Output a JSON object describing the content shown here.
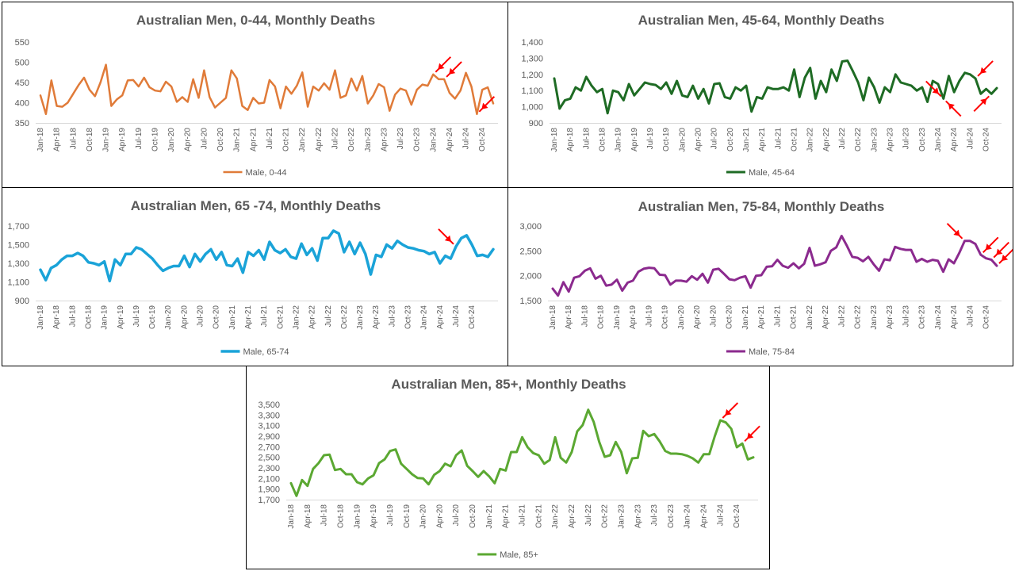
{
  "chart_data": [
    {
      "type": "line",
      "title": "Australian Men, 0-44, Monthly Deaths",
      "xlabel": "",
      "ylabel": "",
      "ylim": [
        350,
        550
      ],
      "yticks": [
        "350",
        "400",
        "450",
        "500",
        "550"
      ],
      "ytick_values": [
        350,
        400,
        450,
        500,
        550
      ],
      "grid": false,
      "legend": "bottom",
      "start": "2018-01",
      "xtick_labels": [
        "Jan-18",
        "Apr-18",
        "Jul-18",
        "Oct-18",
        "Jan-19",
        "Apr-19",
        "Jul-19",
        "Oct-19",
        "Jan-20",
        "Apr-20",
        "Jul-20",
        "Oct-20",
        "Jan-21",
        "Apr-21",
        "Jul-21",
        "Oct-21",
        "Jan-22",
        "Apr-22",
        "Jul-22",
        "Oct-22",
        "Jan-23",
        "Apr-23",
        "Jul-23",
        "Oct-23",
        "Jan-24",
        "Apr-24",
        "Jul-24",
        "Oct-24"
      ],
      "series": [
        {
          "name": "Male, 0-44",
          "color": "#E07B39",
          "values": [
            418,
            372,
            455,
            392,
            390,
            400,
            422,
            444,
            462,
            432,
            416,
            450,
            494,
            392,
            408,
            418,
            455,
            456,
            440,
            462,
            438,
            430,
            428,
            452,
            440,
            402,
            414,
            402,
            458,
            412,
            480,
            414,
            388,
            400,
            412,
            480,
            460,
            392,
            382,
            412,
            398,
            400,
            456,
            440,
            386,
            440,
            422,
            442,
            475,
            390,
            440,
            430,
            448,
            432,
            480,
            412,
            418,
            460,
            430,
            466,
            398,
            418,
            446,
            438,
            380,
            420,
            435,
            430,
            395,
            432,
            445,
            442,
            470,
            458,
            458,
            424,
            410,
            430,
            474,
            440,
            372,
            432,
            438,
            398
          ]
        }
      ],
      "arrows": [
        {
          "month_index": 72,
          "direction": "down-left",
          "color": "#FF0000"
        },
        {
          "month_index": 74,
          "direction": "down-left",
          "color": "#FF0000"
        },
        {
          "month_index": 80,
          "direction": "down-left",
          "color": "#FF0000"
        }
      ]
    },
    {
      "type": "line",
      "title": "Australian Men, 45-64, Monthly Deaths",
      "xlabel": "",
      "ylabel": "",
      "ylim": [
        900,
        1400
      ],
      "yticks": [
        "900",
        "1,000",
        "1,100",
        "1,200",
        "1,300",
        "1,400"
      ],
      "ytick_values": [
        900,
        1000,
        1100,
        1200,
        1300,
        1400
      ],
      "grid": false,
      "legend": "bottom",
      "start": "2018-01",
      "xtick_labels": [
        "Jan-18",
        "Apr-18",
        "Jul-18",
        "Oct-18",
        "Jan-19",
        "Apr-19",
        "Jul-19",
        "Oct-19",
        "Jan-20",
        "Apr-20",
        "Jul-20",
        "Oct-20",
        "Jan-21",
        "Apr-21",
        "Jul-21",
        "Oct-21",
        "Jan-22",
        "Apr-22",
        "Jul-22",
        "Oct-22",
        "Jan-23",
        "Apr-23",
        "Jul-23",
        "Oct-23",
        "Jan-24",
        "Apr-24",
        "Jul-24",
        "Oct-24"
      ],
      "series": [
        {
          "name": "Male, 45-64",
          "color": "#1E6B24",
          "values": [
            1175,
            988,
            1040,
            1050,
            1120,
            1100,
            1185,
            1130,
            1090,
            1110,
            960,
            1100,
            1090,
            1040,
            1140,
            1070,
            1110,
            1150,
            1140,
            1135,
            1110,
            1150,
            1080,
            1160,
            1070,
            1060,
            1130,
            1050,
            1110,
            1020,
            1140,
            1145,
            1060,
            1050,
            1120,
            1100,
            1130,
            970,
            1060,
            1050,
            1120,
            1110,
            1110,
            1120,
            1100,
            1230,
            1060,
            1180,
            1240,
            1050,
            1160,
            1090,
            1230,
            1160,
            1280,
            1285,
            1220,
            1150,
            1040,
            1180,
            1120,
            1025,
            1120,
            1090,
            1200,
            1150,
            1140,
            1130,
            1100,
            1120,
            1030,
            1160,
            1140,
            1050,
            1190,
            1090,
            1160,
            1210,
            1200,
            1175,
            1080,
            1110,
            1080,
            1115
          ]
        }
      ],
      "arrows": [
        {
          "month_index": 73,
          "direction": "down-right",
          "color": "#FF0000"
        },
        {
          "month_index": 73,
          "direction": "up-left",
          "color": "#FF0000"
        },
        {
          "month_index": 79,
          "direction": "down-left",
          "color": "#FF0000"
        },
        {
          "month_index": 82,
          "direction": "up-right",
          "color": "#FF0000"
        }
      ]
    },
    {
      "type": "line",
      "title": "Australian Men, 65 -74, Monthly Deaths",
      "xlabel": "",
      "ylabel": "",
      "ylim": [
        900,
        1700
      ],
      "yticks": [
        "900",
        "1,100",
        "1,300",
        "1,500",
        "1,700"
      ],
      "ytick_values": [
        900,
        1100,
        1300,
        1500,
        1700
      ],
      "grid": false,
      "legend": "bottom",
      "start": "2018-01",
      "xtick_labels": [
        "Jan-18",
        "Apr-18",
        "Jul-18",
        "Oct-18",
        "Jan-19",
        "Apr-19",
        "Jul-19",
        "Oct-19",
        "Jan-20",
        "Apr-20",
        "Jul-20",
        "Oct-20",
        "Jan-21",
        "Apr-21",
        "Jul-21",
        "Oct-21",
        "Jan-22",
        "Apr-22",
        "Jul-22",
        "Oct-22",
        "Jan-23",
        "Apr-23",
        "Jul-23",
        "Oct-23",
        "Jan-24",
        "Apr-24",
        "Jul-24",
        "Oct-24"
      ],
      "series": [
        {
          "name": "Male, 65-74",
          "color": "#1AA3D8",
          "values": [
            1230,
            1120,
            1250,
            1280,
            1340,
            1380,
            1380,
            1410,
            1380,
            1310,
            1300,
            1280,
            1320,
            1110,
            1340,
            1280,
            1400,
            1400,
            1470,
            1450,
            1400,
            1350,
            1280,
            1220,
            1250,
            1270,
            1270,
            1380,
            1260,
            1400,
            1320,
            1400,
            1450,
            1340,
            1420,
            1280,
            1270,
            1350,
            1200,
            1420,
            1380,
            1440,
            1340,
            1530,
            1440,
            1410,
            1450,
            1370,
            1350,
            1510,
            1390,
            1460,
            1330,
            1570,
            1570,
            1650,
            1620,
            1420,
            1530,
            1400,
            1520,
            1400,
            1180,
            1390,
            1370,
            1500,
            1460,
            1540,
            1500,
            1470,
            1460,
            1440,
            1430,
            1400,
            1420,
            1300,
            1380,
            1350,
            1480,
            1570,
            1600,
            1500,
            1380,
            1390,
            1370,
            1450
          ]
        }
      ],
      "arrows": [
        {
          "month_index": 78,
          "direction": "down-right",
          "color": "#FF0000"
        }
      ]
    },
    {
      "type": "line",
      "title": "Australian Men, 75-84, Monthly Deaths",
      "xlabel": "",
      "ylabel": "",
      "ylim": [
        1500,
        3000
      ],
      "yticks": [
        "1,500",
        "2,000",
        "2,500",
        "3,000"
      ],
      "ytick_values": [
        1500,
        2000,
        2500,
        3000
      ],
      "grid": false,
      "legend": "bottom",
      "start": "2018-01",
      "xtick_labels": [
        "Jan-18",
        "Apr-18",
        "Jul-18",
        "Oct-18",
        "Jan-19",
        "Apr-19",
        "Jul-19",
        "Oct-19",
        "Jan-20",
        "Apr-20",
        "Jul-20",
        "Oct-20",
        "Jan-21",
        "Apr-21",
        "Jul-21",
        "Oct-21",
        "Jan-22",
        "Apr-22",
        "Jul-22",
        "Oct-22",
        "Jan-23",
        "Apr-23",
        "Jul-23",
        "Oct-23",
        "Jan-24",
        "Apr-24",
        "Jul-24",
        "Oct-24"
      ],
      "series": [
        {
          "name": "Male, 75-84",
          "color": "#8B2A8E",
          "values": [
            1740,
            1600,
            1870,
            1680,
            1960,
            1990,
            2100,
            2150,
            1940,
            2000,
            1800,
            1820,
            1920,
            1700,
            1860,
            1900,
            2080,
            2140,
            2160,
            2150,
            2020,
            2010,
            1820,
            1900,
            1900,
            1880,
            1990,
            1920,
            2040,
            1860,
            2120,
            2140,
            2040,
            1930,
            1910,
            1960,
            1990,
            1760,
            2000,
            2010,
            2180,
            2190,
            2320,
            2200,
            2160,
            2250,
            2150,
            2240,
            2560,
            2200,
            2230,
            2270,
            2500,
            2570,
            2800,
            2600,
            2380,
            2360,
            2290,
            2380,
            2230,
            2100,
            2330,
            2310,
            2580,
            2540,
            2520,
            2520,
            2280,
            2340,
            2280,
            2320,
            2300,
            2080,
            2330,
            2250,
            2460,
            2700,
            2700,
            2640,
            2420,
            2350,
            2320,
            2200
          ]
        }
      ],
      "arrows": [
        {
          "month_index": 77,
          "direction": "down-right",
          "color": "#FF0000"
        },
        {
          "month_index": 80,
          "direction": "down-left",
          "color": "#FF0000"
        },
        {
          "month_index": 82,
          "direction": "down-left",
          "color": "#FF0000"
        },
        {
          "month_index": 83,
          "direction": "down-left",
          "color": "#FF0000"
        }
      ]
    },
    {
      "type": "line",
      "title": "Australian Men, 85+, Monthly Deaths",
      "xlabel": "",
      "ylabel": "",
      "ylim": [
        1700,
        3500
      ],
      "yticks": [
        "1,700",
        "1,900",
        "2,100",
        "2,300",
        "2,500",
        "2,700",
        "2,900",
        "3,100",
        "3,300",
        "3,500"
      ],
      "ytick_values": [
        1700,
        1900,
        2100,
        2300,
        2500,
        2700,
        2900,
        3100,
        3300,
        3500
      ],
      "grid": false,
      "legend": "bottom",
      "start": "2018-01",
      "xtick_labels": [
        "Jan-18",
        "Apr-18",
        "Jul-18",
        "Oct-18",
        "Jan-19",
        "Apr-19",
        "Jul-19",
        "Oct-19",
        "Jan-20",
        "Apr-20",
        "Jul-20",
        "Oct-20",
        "Jan-21",
        "Apr-21",
        "Jul-21",
        "Oct-21",
        "Jan-22",
        "Apr-22",
        "Jul-22",
        "Oct-22",
        "Jan-23",
        "Apr-23",
        "Jul-23",
        "Oct-23",
        "Jan-24",
        "Apr-24",
        "Jul-24",
        "Oct-24"
      ],
      "series": [
        {
          "name": "Male, 85+",
          "color": "#5BA832",
          "values": [
            2010,
            1770,
            2070,
            1960,
            2280,
            2390,
            2540,
            2550,
            2260,
            2280,
            2180,
            2180,
            2030,
            1990,
            2100,
            2160,
            2390,
            2460,
            2620,
            2650,
            2380,
            2280,
            2180,
            2110,
            2100,
            1990,
            2170,
            2240,
            2380,
            2330,
            2540,
            2630,
            2340,
            2240,
            2130,
            2240,
            2140,
            2010,
            2280,
            2250,
            2600,
            2600,
            2880,
            2690,
            2580,
            2540,
            2380,
            2450,
            2880,
            2490,
            2400,
            2600,
            2990,
            3110,
            3400,
            3170,
            2790,
            2510,
            2540,
            2790,
            2600,
            2200,
            2480,
            2490,
            3000,
            2900,
            2940,
            2800,
            2620,
            2570,
            2570,
            2560,
            2530,
            2480,
            2400,
            2560,
            2560,
            2900,
            3200,
            3160,
            3040,
            2690,
            2760,
            2460,
            2500
          ]
        }
      ],
      "arrows": [
        {
          "month_index": 78,
          "direction": "down-left",
          "color": "#FF0000"
        },
        {
          "month_index": 82,
          "direction": "down-left",
          "color": "#FF0000"
        }
      ]
    }
  ]
}
